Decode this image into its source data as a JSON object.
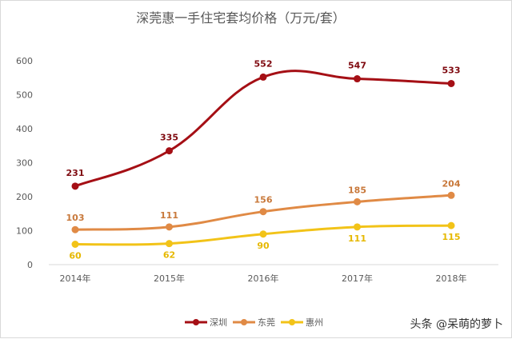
{
  "chart_data": {
    "type": "line",
    "title": "深莞惠一手住宅套均价格（万元/套）",
    "categories": [
      "2014年",
      "2015年",
      "2016年",
      "2017年",
      "2018年"
    ],
    "ylim": [
      0,
      600
    ],
    "yticks": [
      0,
      100,
      200,
      300,
      400,
      500,
      600
    ],
    "grid": false,
    "legend_position": "bottom",
    "smooth": true,
    "series": [
      {
        "name": "深圳",
        "values": [
          231,
          335,
          552,
          547,
          533
        ],
        "color": "#a50f15",
        "label_color": "#7f0a10"
      },
      {
        "name": "东莞",
        "values": [
          103,
          111,
          156,
          185,
          204
        ],
        "color": "#e08a45",
        "label_color": "#c8783a"
      },
      {
        "name": "惠州",
        "values": [
          60,
          62,
          90,
          111,
          115
        ],
        "color": "#f2c318",
        "label_color": "#e6b800"
      }
    ]
  },
  "watermark": "头条 @呆萌的萝卜"
}
